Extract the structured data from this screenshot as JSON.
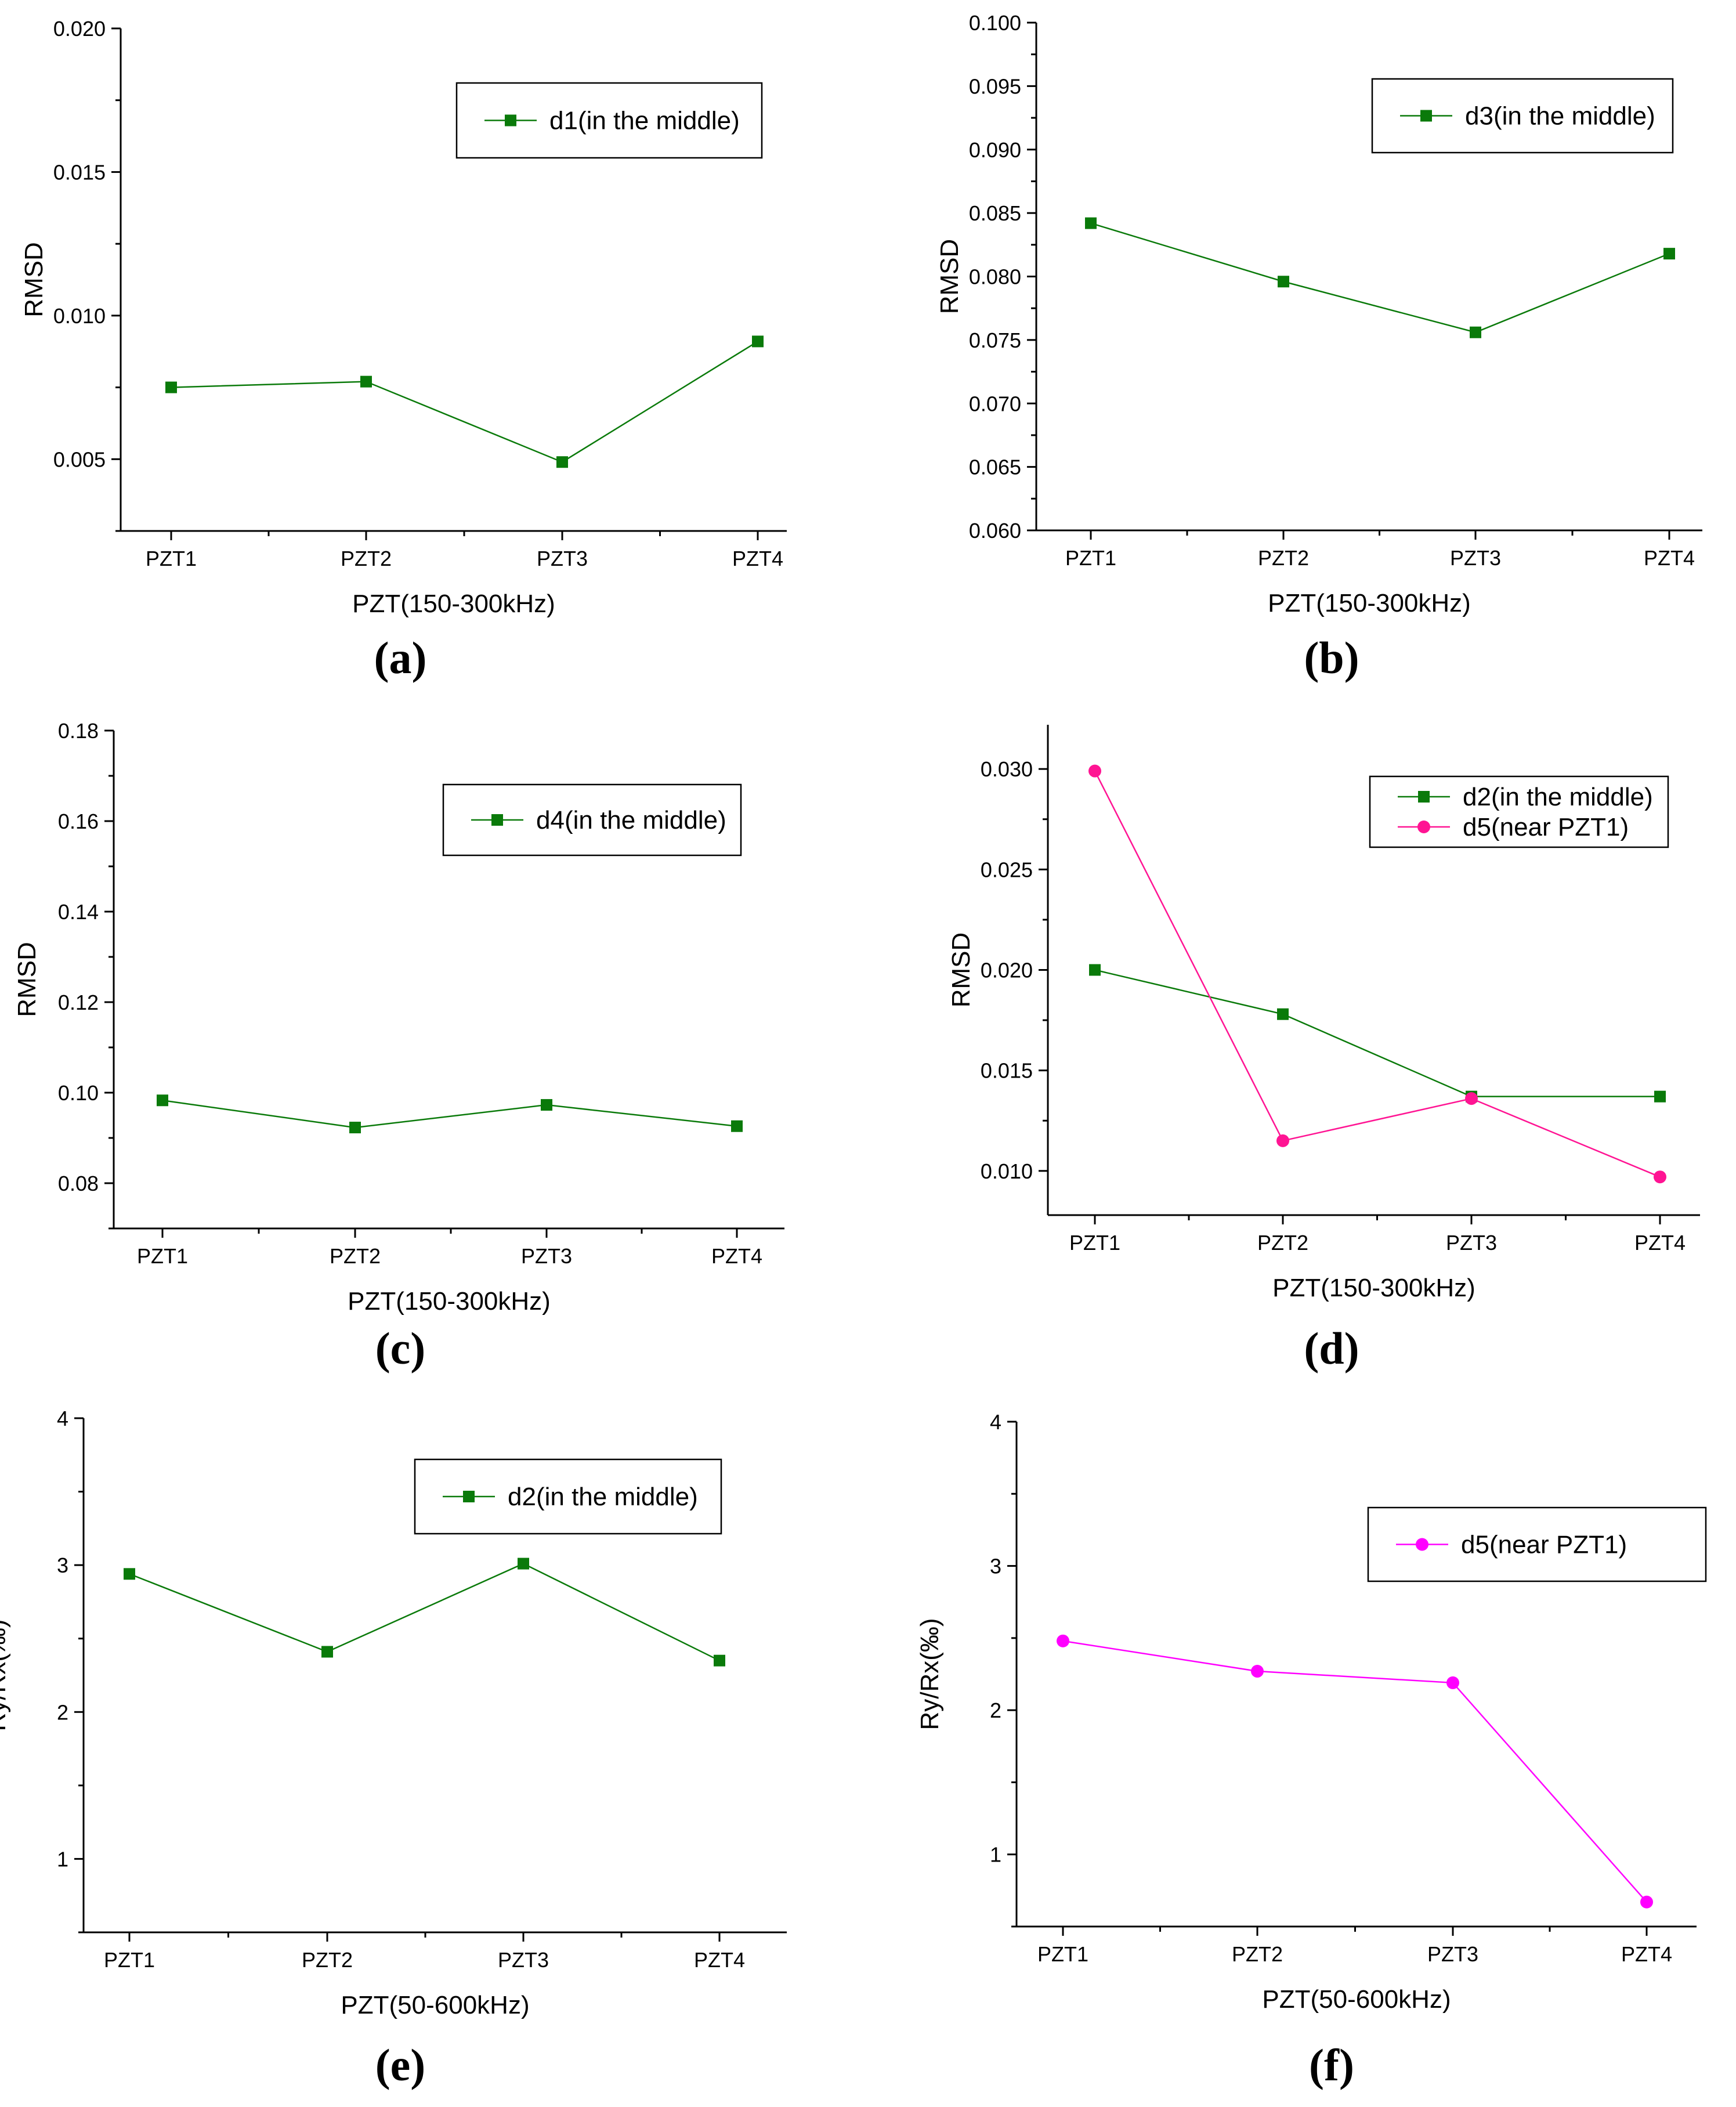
{
  "chart_data": [
    {
      "panel": "(a)",
      "type": "line",
      "categories": [
        "PZT1",
        "PZT2",
        "PZT3",
        "PZT4"
      ],
      "xlabel": "PZT(150-300kHz)",
      "ylabel": "RMSD",
      "ylim": [
        0.0025,
        0.02
      ],
      "yticks": [
        0.005,
        0.01,
        0.015,
        0.02
      ],
      "ytick_labels": [
        "0.005",
        "0.010",
        "0.015",
        "0.020"
      ],
      "legend_position": "top-right",
      "grid": false,
      "series": [
        {
          "name": "d1(in the middle)",
          "color": "#0a7a0a",
          "marker": "square",
          "values": [
            0.0075,
            0.0077,
            0.0049,
            0.0091
          ]
        }
      ]
    },
    {
      "panel": "(b)",
      "type": "line",
      "categories": [
        "PZT1",
        "PZT2",
        "PZT3",
        "PZT4"
      ],
      "xlabel": "PZT(150-300kHz)",
      "ylabel": "RMSD",
      "ylim": [
        0.06,
        0.1
      ],
      "yticks": [
        0.06,
        0.065,
        0.07,
        0.075,
        0.08,
        0.085,
        0.09,
        0.095,
        0.1
      ],
      "ytick_labels": [
        "0.060",
        "0.065",
        "0.070",
        "0.075",
        "0.080",
        "0.085",
        "0.090",
        "0.095",
        "0.100"
      ],
      "legend_position": "top-right",
      "grid": false,
      "series": [
        {
          "name": "d3(in the middle)",
          "color": "#0a7a0a",
          "marker": "square",
          "values": [
            0.0842,
            0.0796,
            0.0756,
            0.0818
          ]
        }
      ]
    },
    {
      "panel": "(c)",
      "type": "line",
      "categories": [
        "PZT1",
        "PZT2",
        "PZT3",
        "PZT4"
      ],
      "xlabel": "PZT(150-300kHz)",
      "ylabel": "RMSD",
      "ylim": [
        0.07,
        0.18
      ],
      "yticks": [
        0.08,
        0.1,
        0.12,
        0.14,
        0.16,
        0.18
      ],
      "ytick_labels": [
        "0.08",
        "0.10",
        "0.12",
        "0.14",
        "0.16",
        "0.18"
      ],
      "legend_position": "top-right",
      "grid": false,
      "series": [
        {
          "name": "d4(in the middle)",
          "color": "#0a7a0a",
          "marker": "square",
          "values": [
            0.0983,
            0.0923,
            0.0973,
            0.0926
          ]
        }
      ]
    },
    {
      "panel": "(d)",
      "type": "line",
      "categories": [
        "PZT1",
        "PZT2",
        "PZT3",
        "PZT4"
      ],
      "xlabel": "PZT(150-300kHz)",
      "ylabel": "RMSD",
      "ylim": [
        0.0078,
        0.0322
      ],
      "yticks": [
        0.01,
        0.015,
        0.02,
        0.025,
        0.03
      ],
      "ytick_labels": [
        "0.010",
        "0.015",
        "0.020",
        "0.025",
        "0.030"
      ],
      "legend_position": "top-right",
      "grid": false,
      "series": [
        {
          "name": "d2(in the middle)",
          "color": "#0a7a0a",
          "marker": "square",
          "values": [
            0.02,
            0.0178,
            0.0137,
            0.0137
          ]
        },
        {
          "name": "d5(near PZT1)",
          "color": "#ff1493",
          "marker": "circle",
          "values": [
            0.0299,
            0.0115,
            0.0136,
            0.0097
          ]
        }
      ]
    },
    {
      "panel": "(e)",
      "type": "line",
      "categories": [
        "PZT1",
        "PZT2",
        "PZT3",
        "PZT4"
      ],
      "xlabel": "PZT(50-600kHz)",
      "ylabel": "Ry/Rx(‰)",
      "ylim": [
        0.5,
        4.0
      ],
      "yticks": [
        1,
        2,
        3,
        4
      ],
      "ytick_labels": [
        "1",
        "2",
        "3",
        "4"
      ],
      "legend_position": "top-right",
      "grid": false,
      "series": [
        {
          "name": "d2(in the middle)",
          "color": "#0a7a0a",
          "marker": "square",
          "values": [
            2.94,
            2.41,
            3.01,
            2.35
          ]
        }
      ]
    },
    {
      "panel": "(f)",
      "type": "line",
      "categories": [
        "PZT1",
        "PZT2",
        "PZT3",
        "PZT4"
      ],
      "xlabel": "PZT(50-600kHz)",
      "ylabel": "Ry/Rx(‰)",
      "ylim": [
        0.5,
        4.0
      ],
      "yticks": [
        1,
        2,
        3,
        4
      ],
      "ytick_labels": [
        "1",
        "2",
        "3",
        "4"
      ],
      "legend_position": "top-right",
      "grid": false,
      "series": [
        {
          "name": "d5(near PZT1)",
          "color": "#ff00ff",
          "marker": "circle",
          "values": [
            2.48,
            2.27,
            2.19,
            0.67
          ]
        }
      ]
    }
  ]
}
